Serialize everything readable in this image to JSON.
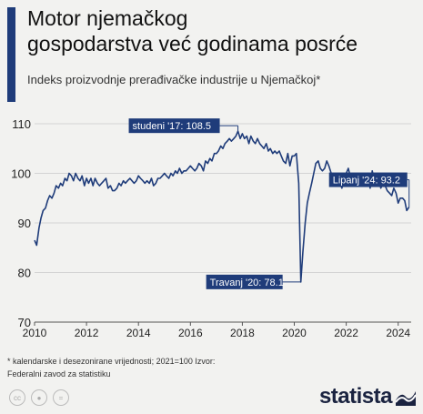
{
  "header": {
    "title_line1": "Motor njemačkog",
    "title_line2": "gospodarstva već godinama posrće",
    "subtitle": "Indeks proizvodnje prerađivačke industrije u Njemačkoj*"
  },
  "footnote": {
    "line1": "* kalendarske i desezonirane vrijednosti; 2021=100 Izvor:",
    "line2": "Federalni zavod za statistiku"
  },
  "brand": {
    "name": "statista",
    "icon": "statista-logo-icon"
  },
  "license_icons": [
    "cc-icon",
    "attribution-icon",
    "no-derivatives-icon"
  ],
  "colors": {
    "accent": "#1f3c7a",
    "line": "#1f3c7a",
    "grid": "#d4d4d4"
  },
  "chart_data": {
    "type": "line",
    "title": "Indeks proizvodnje prerađivačke industrije u Njemačkoj*",
    "xlabel": "",
    "ylabel": "",
    "xlim": [
      2010,
      2024.5
    ],
    "ylim": [
      70,
      110
    ],
    "y_ticks": [
      70,
      80,
      90,
      100,
      110
    ],
    "x_ticks": [
      "2010",
      "2012",
      "2014",
      "2016",
      "2018",
      "2020",
      "2022",
      "2024"
    ],
    "grid": true,
    "annotations": [
      {
        "label": "studeni '17: 108.5",
        "x": 2017.83,
        "y": 108.5
      },
      {
        "label": "Travanj '20: 78.1",
        "x": 2020.25,
        "y": 78.1
      },
      {
        "label": "Lipanj '24: 93.2",
        "x": 2024.42,
        "y": 93.2
      }
    ],
    "series": [
      {
        "x": [
          2010.0,
          2010.08,
          2010.17,
          2010.25,
          2010.33,
          2010.42,
          2010.5,
          2010.58,
          2010.67,
          2010.75,
          2010.83,
          2010.92,
          2011.0,
          2011.08,
          2011.17,
          2011.25,
          2011.33,
          2011.42,
          2011.5,
          2011.58,
          2011.67,
          2011.75,
          2011.83,
          2011.92,
          2012.0,
          2012.08,
          2012.17,
          2012.25,
          2012.33,
          2012.42,
          2012.5,
          2012.58,
          2012.67,
          2012.75,
          2012.83,
          2012.92,
          2013.0,
          2013.08,
          2013.17,
          2013.25,
          2013.33,
          2013.42,
          2013.5,
          2013.58,
          2013.67,
          2013.75,
          2013.83,
          2013.92,
          2014.0,
          2014.08,
          2014.17,
          2014.25,
          2014.33,
          2014.42,
          2014.5,
          2014.58,
          2014.67,
          2014.75,
          2014.83,
          2014.92,
          2015.0,
          2015.08,
          2015.17,
          2015.25,
          2015.33,
          2015.42,
          2015.5,
          2015.58,
          2015.67,
          2015.75,
          2015.83,
          2015.92,
          2016.0,
          2016.08,
          2016.17,
          2016.25,
          2016.33,
          2016.42,
          2016.5,
          2016.58,
          2016.67,
          2016.75,
          2016.83,
          2016.92,
          2017.0,
          2017.08,
          2017.17,
          2017.25,
          2017.33,
          2017.42,
          2017.5,
          2017.58,
          2017.67,
          2017.75,
          2017.83,
          2017.92,
          2018.0,
          2018.08,
          2018.17,
          2018.25,
          2018.33,
          2018.42,
          2018.5,
          2018.58,
          2018.67,
          2018.75,
          2018.83,
          2018.92,
          2019.0,
          2019.08,
          2019.17,
          2019.25,
          2019.33,
          2019.42,
          2019.5,
          2019.58,
          2019.67,
          2019.75,
          2019.83,
          2019.92,
          2020.0,
          2020.08,
          2020.17,
          2020.25,
          2020.33,
          2020.42,
          2020.5,
          2020.58,
          2020.67,
          2020.75,
          2020.83,
          2020.92,
          2021.0,
          2021.08,
          2021.17,
          2021.25,
          2021.33,
          2021.42,
          2021.5,
          2021.58,
          2021.67,
          2021.75,
          2021.83,
          2021.92,
          2022.0,
          2022.08,
          2022.17,
          2022.25,
          2022.33,
          2022.42,
          2022.5,
          2022.58,
          2022.67,
          2022.75,
          2022.83,
          2022.92,
          2023.0,
          2023.08,
          2023.17,
          2023.25,
          2023.33,
          2023.42,
          2023.5,
          2023.58,
          2023.67,
          2023.75,
          2023.83,
          2023.92,
          2024.0,
          2024.08,
          2024.17,
          2024.25,
          2024.33,
          2024.42
        ],
        "values": [
          86.5,
          85.5,
          89,
          91,
          92.5,
          93,
          94.5,
          95.5,
          95,
          96,
          97.5,
          97,
          98,
          97.5,
          99,
          98.5,
          100,
          99.5,
          98.5,
          100,
          99,
          98.5,
          99.5,
          97.5,
          99,
          98,
          99,
          97.5,
          99,
          98,
          97.5,
          98,
          98.5,
          99,
          97,
          97.5,
          96.5,
          96.5,
          97,
          98,
          97.5,
          98.5,
          98,
          98.5,
          99,
          98.5,
          98,
          98.5,
          99.5,
          99,
          98.5,
          98,
          98.5,
          98,
          99,
          97.5,
          98,
          99,
          99,
          99.5,
          100,
          99.5,
          99,
          100,
          99.5,
          100.5,
          100,
          101,
          100,
          100.5,
          100.5,
          101,
          101.5,
          101,
          100.5,
          101,
          102,
          101.5,
          100.5,
          102.5,
          102,
          103,
          102.5,
          104,
          104,
          104.5,
          105.5,
          105,
          106,
          106.5,
          107,
          106.5,
          107,
          107.5,
          108.5,
          107,
          108,
          107,
          107.5,
          106,
          107.5,
          106.5,
          106,
          107,
          106,
          105.5,
          105,
          106,
          104.5,
          105,
          104,
          104.5,
          104,
          104.5,
          103.5,
          102.5,
          102,
          104,
          101.5,
          103.5,
          103.5,
          104,
          98,
          78.1,
          84,
          90,
          94,
          96,
          98,
          100,
          102,
          102.5,
          101,
          100.5,
          101,
          102.5,
          101.5,
          100,
          99.5,
          98,
          97.5,
          98.5,
          97,
          98.5,
          100,
          101,
          99,
          98,
          98.5,
          98,
          99,
          97.5,
          98,
          98.5,
          100,
          97,
          100.5,
          98.5,
          99,
          99.5,
          97,
          98,
          97.5,
          96.5,
          96,
          95.5,
          97,
          96,
          94,
          95,
          95,
          94.5,
          92.5,
          93.2
        ]
      }
    ]
  }
}
